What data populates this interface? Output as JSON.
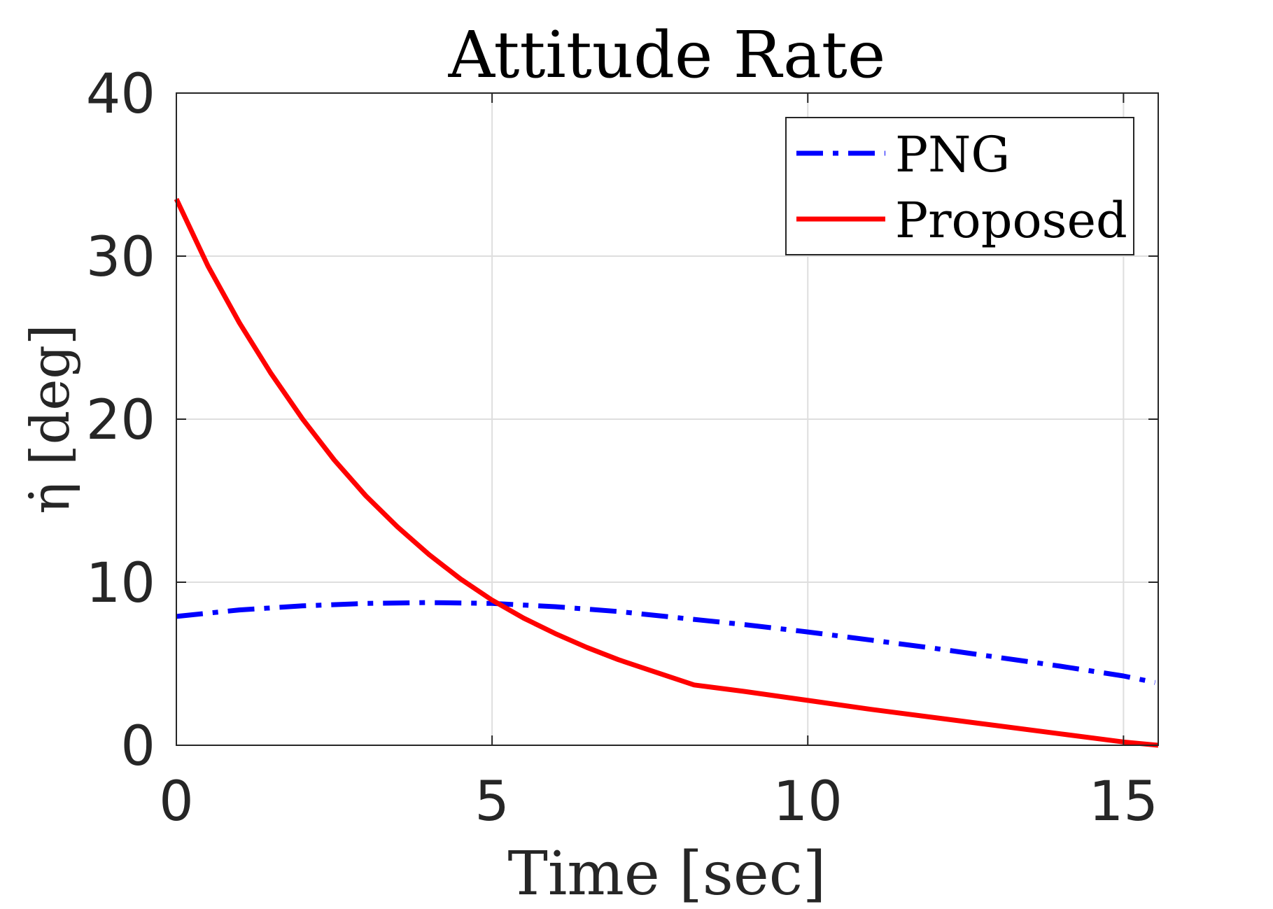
{
  "chart_data": {
    "type": "line",
    "title": "Attitude Rate",
    "xlabel": "Time [sec]",
    "ylabel": "η̇ [deg]",
    "xlim": [
      0,
      15.55
    ],
    "ylim": [
      0,
      40
    ],
    "xticks": [
      0,
      5,
      10,
      15
    ],
    "yticks": [
      0,
      10,
      20,
      30,
      40
    ],
    "grid": true,
    "legend_position": "top-right",
    "series": [
      {
        "name": "PNG",
        "color": "#0000ff",
        "line_style": "dash-dot",
        "x": [
          0,
          1,
          2,
          3,
          4,
          5,
          6,
          7,
          8,
          9,
          10,
          11,
          12,
          13,
          14,
          15,
          15.5
        ],
        "y": [
          7.9,
          8.3,
          8.55,
          8.7,
          8.75,
          8.7,
          8.5,
          8.2,
          7.8,
          7.4,
          6.95,
          6.45,
          5.95,
          5.4,
          4.85,
          4.25,
          3.85
        ]
      },
      {
        "name": "Proposed",
        "color": "#ff0000",
        "line_style": "solid",
        "x": [
          0,
          0.5,
          1,
          1.5,
          2,
          2.5,
          3,
          3.5,
          4,
          4.5,
          5,
          5.5,
          6,
          6.5,
          7,
          7.5,
          8.2,
          9,
          10,
          11,
          12,
          13,
          14,
          15,
          15.55
        ],
        "y": [
          33.5,
          29.4,
          25.9,
          22.8,
          20.0,
          17.5,
          15.3,
          13.4,
          11.7,
          10.2,
          8.9,
          7.8,
          6.85,
          6.0,
          5.25,
          4.6,
          3.7,
          3.3,
          2.75,
          2.2,
          1.7,
          1.2,
          0.7,
          0.2,
          0.0
        ]
      }
    ]
  }
}
